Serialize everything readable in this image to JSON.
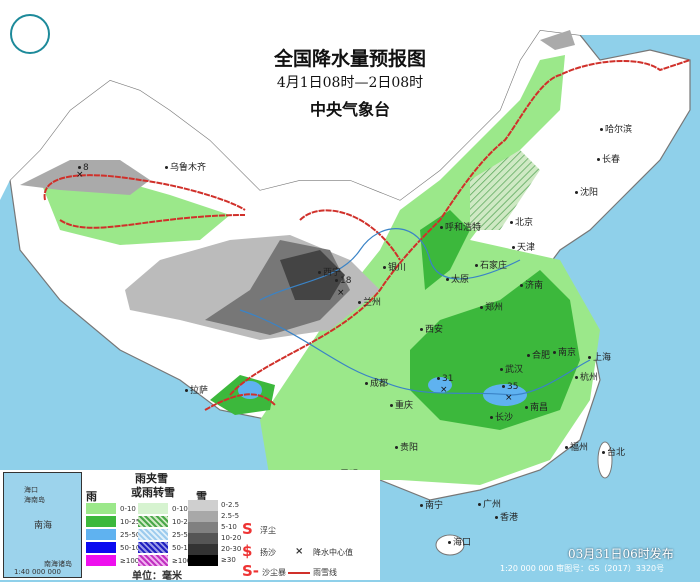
{
  "title": "全国降水量预报图",
  "period": "4月1日08时—2日08时",
  "agency": "中央气象台",
  "issued": "03月31日06时发布",
  "approval": "1:20 000 000    审图号：GS（2017）3320号",
  "colors": {
    "sea": "#8fd0ea",
    "rain_0_10": "#9be88a",
    "rain_10_25": "#3cb83c",
    "rain_25_50": "#5fb2f0",
    "rain_50_100": "#0a0af0",
    "rain_100": "#ee10ee",
    "rain_snow_line": "#d0302a"
  },
  "cities": [
    {
      "name": "乌鲁木齐"
    },
    {
      "name": "哈尔滨"
    },
    {
      "name": "长春"
    },
    {
      "name": "沈阳"
    },
    {
      "name": "北京"
    },
    {
      "name": "天津"
    },
    {
      "name": "呼和浩特"
    },
    {
      "name": "石家庄"
    },
    {
      "name": "太原"
    },
    {
      "name": "银川"
    },
    {
      "name": "兰州"
    },
    {
      "name": "西宁"
    },
    {
      "name": "济南"
    },
    {
      "name": "郑州"
    },
    {
      "name": "西安"
    },
    {
      "name": "合肥"
    },
    {
      "name": "南京"
    },
    {
      "name": "上海"
    },
    {
      "name": "武汉"
    },
    {
      "name": "杭州"
    },
    {
      "name": "成都"
    },
    {
      "name": "重庆"
    },
    {
      "name": "长沙"
    },
    {
      "name": "南昌"
    },
    {
      "name": "贵阳"
    },
    {
      "name": "拉萨"
    },
    {
      "name": "昆明"
    },
    {
      "name": "福州"
    },
    {
      "name": "台北"
    },
    {
      "name": "南宁"
    },
    {
      "name": "广州"
    },
    {
      "name": "香港"
    },
    {
      "name": "海口"
    }
  ],
  "centers": [
    {
      "value": "8"
    },
    {
      "value": "18"
    },
    {
      "value": "31"
    },
    {
      "value": "35"
    }
  ],
  "legend": {
    "rain": {
      "title": "雨",
      "items": [
        "0-10",
        "10-25",
        "25-50",
        "50-100",
        "≥100"
      ]
    },
    "mixed": {
      "title": "雨夹雪\n或雨转雪",
      "title1": "雨夹雪",
      "title2": "或雨转雪",
      "items": [
        "0-10",
        "10-25",
        "25-50",
        "50-100",
        "≥100"
      ]
    },
    "snow": {
      "title": "雪",
      "items": [
        "0-2.5",
        "2.5-5",
        "5-10",
        "10-20",
        "20-30",
        "≥30"
      ]
    },
    "unit": "单位：毫米",
    "symbols": [
      "浮尘",
      "扬沙",
      "沙尘暴",
      "降水中心值",
      "雨雪线"
    ],
    "inset": {
      "label": "南海诸岛",
      "scale": "1:40 000 000",
      "sea": "南海",
      "island": "海南岛",
      "city": "海口"
    }
  }
}
